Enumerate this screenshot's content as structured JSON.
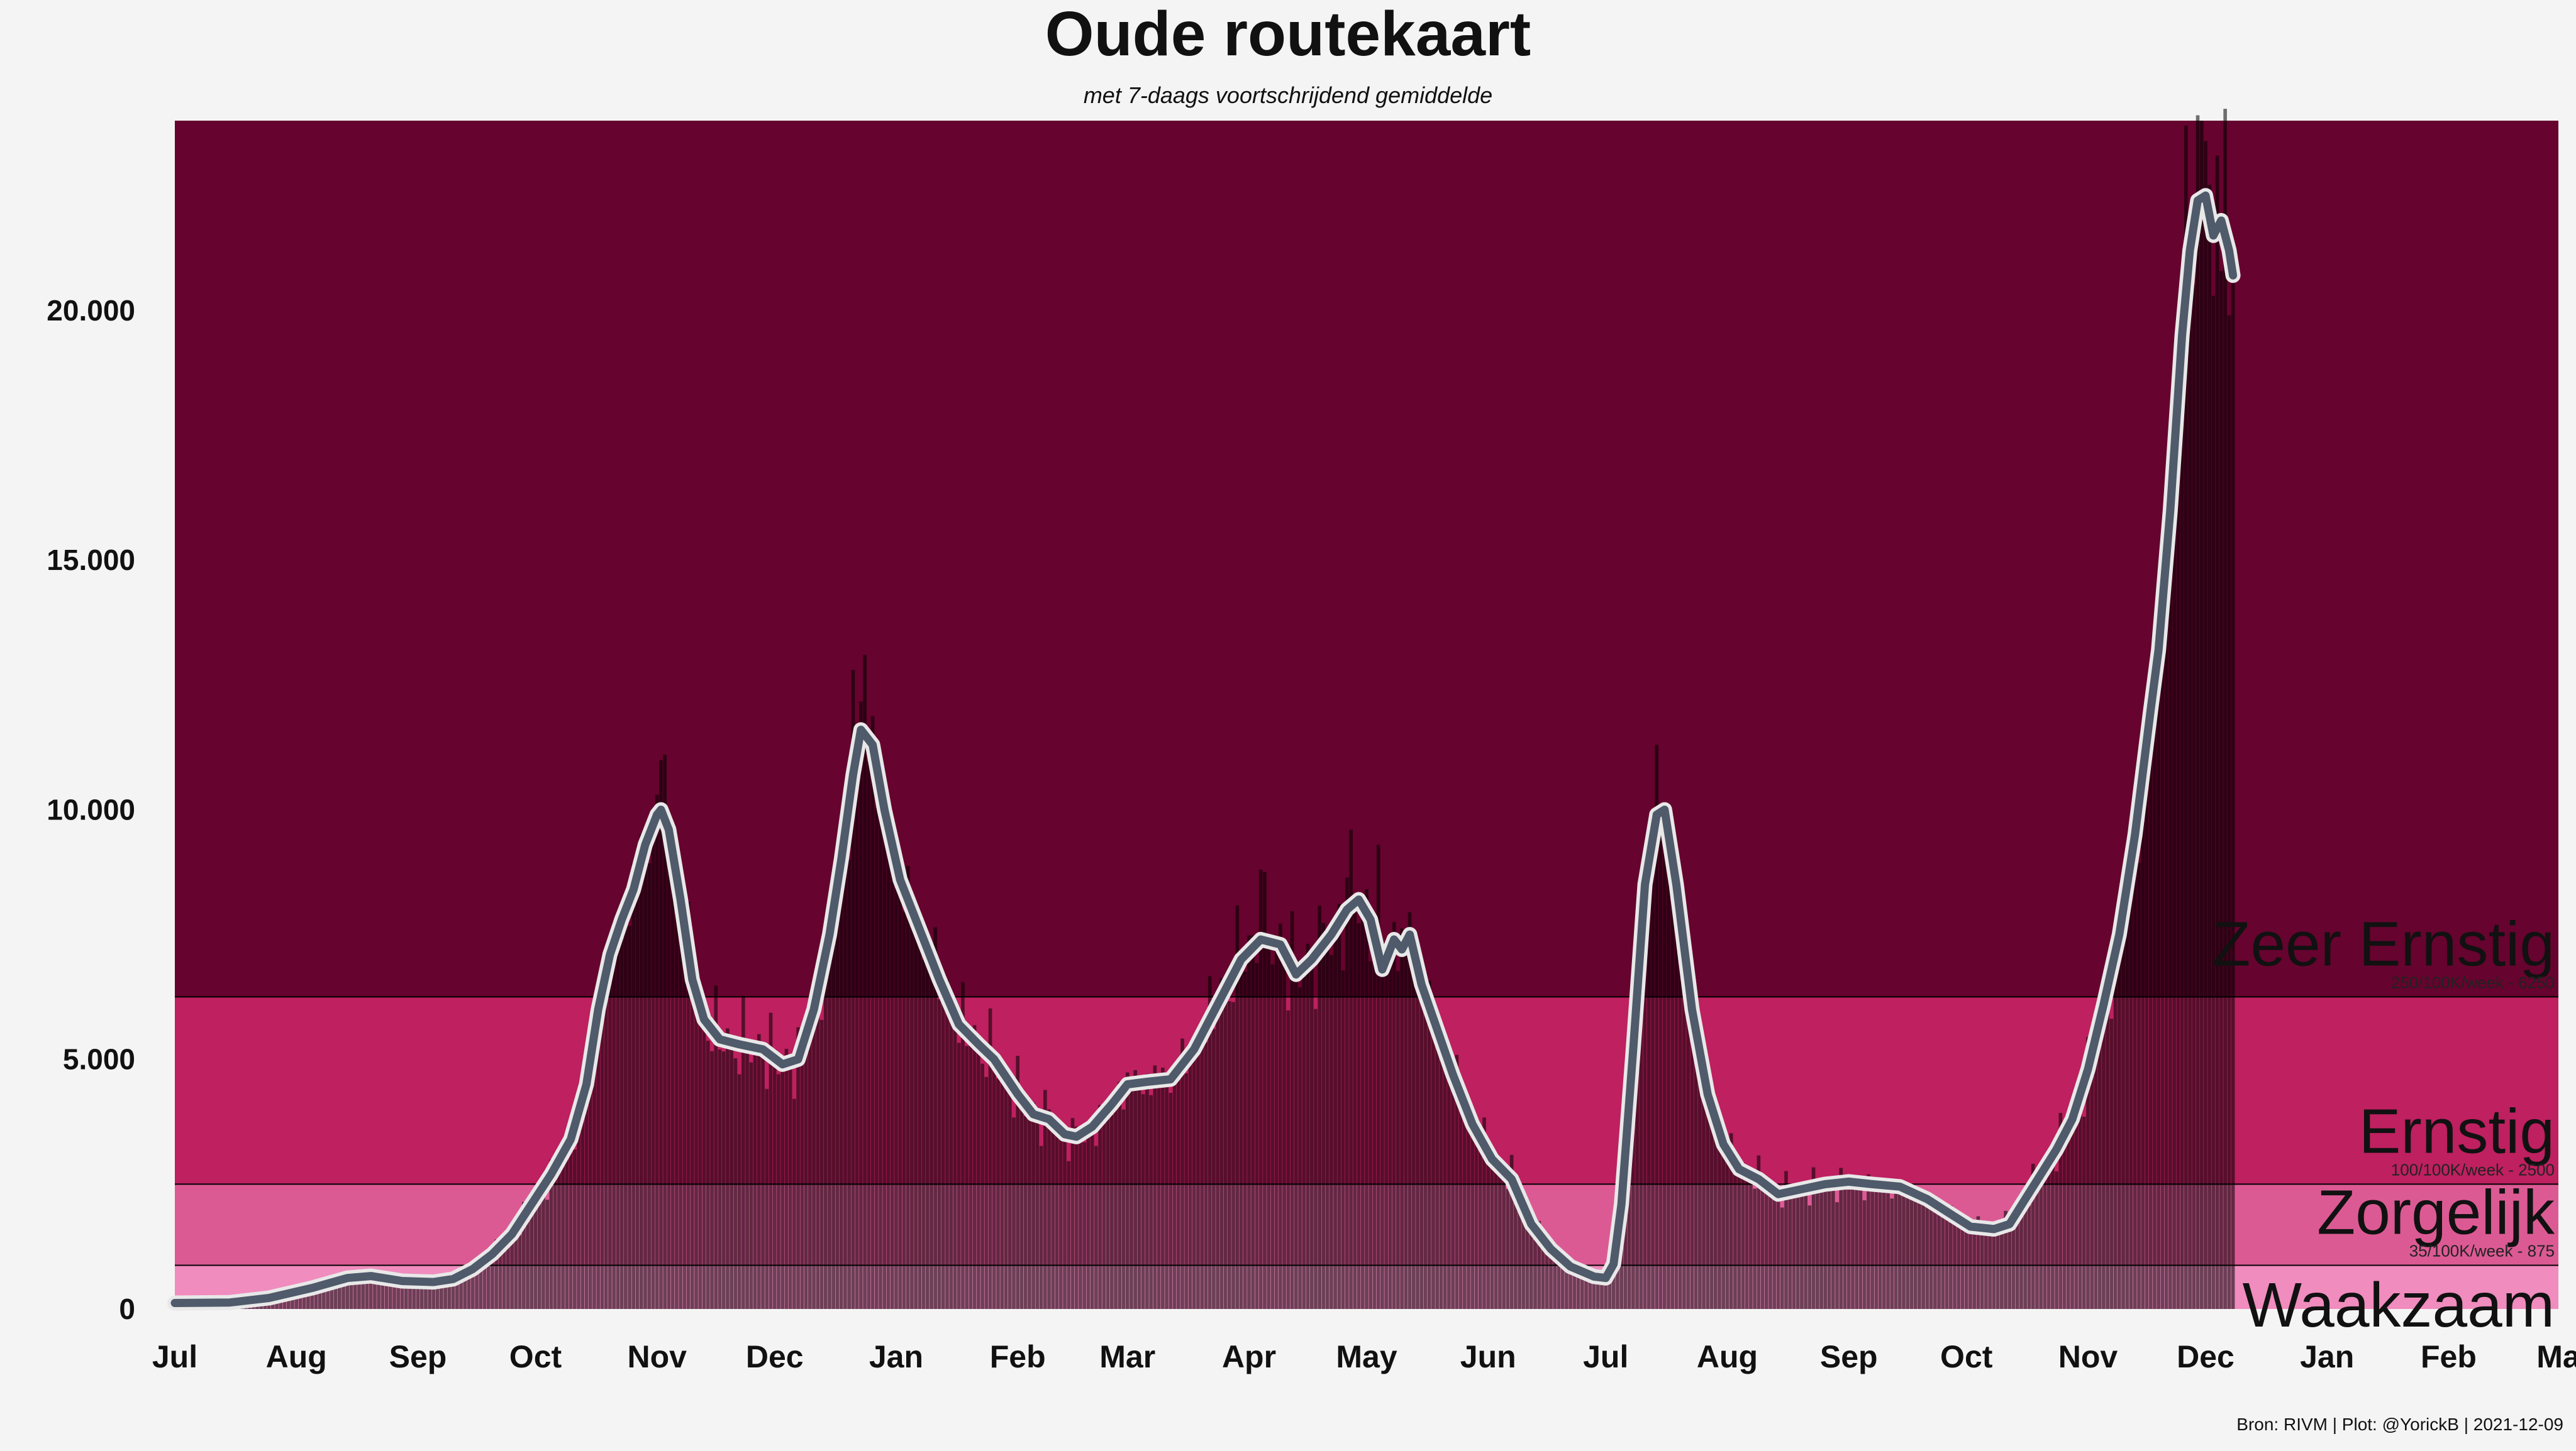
{
  "chart_data": {
    "type": "bar",
    "title": "Oude routekaart",
    "subtitle": "met 7-daags voortschrijdend gemiddelde",
    "source": "Bron: RIVM | Plot: @YorickB  |  2021-12-09",
    "ylim": [
      0,
      23800
    ],
    "yticks": [
      {
        "value": 0,
        "label": "0"
      },
      {
        "value": 5000,
        "label": "5.000"
      },
      {
        "value": 10000,
        "label": "10.000"
      },
      {
        "value": 15000,
        "label": "15.000"
      },
      {
        "value": 20000,
        "label": "20.000"
      }
    ],
    "xlim": [
      "2020-07-01",
      "2022-03-01"
    ],
    "xticks": [
      {
        "date": "2020-07-01",
        "label": "Jul"
      },
      {
        "date": "2020-08-01",
        "label": "Aug"
      },
      {
        "date": "2020-09-01",
        "label": "Sep"
      },
      {
        "date": "2020-10-01",
        "label": "Oct"
      },
      {
        "date": "2020-11-01",
        "label": "Nov"
      },
      {
        "date": "2020-12-01",
        "label": "Dec"
      },
      {
        "date": "2021-01-01",
        "label": "Jan"
      },
      {
        "date": "2021-02-01",
        "label": "Feb"
      },
      {
        "date": "2021-03-01",
        "label": "Mar"
      },
      {
        "date": "2021-04-01",
        "label": "Apr"
      },
      {
        "date": "2021-05-01",
        "label": "May"
      },
      {
        "date": "2021-06-01",
        "label": "Jun"
      },
      {
        "date": "2021-07-01",
        "label": "Jul"
      },
      {
        "date": "2021-08-01",
        "label": "Aug"
      },
      {
        "date": "2021-09-01",
        "label": "Sep"
      },
      {
        "date": "2021-10-01",
        "label": "Oct"
      },
      {
        "date": "2021-11-01",
        "label": "Nov"
      },
      {
        "date": "2021-12-01",
        "label": "Dec"
      },
      {
        "date": "2022-01-01",
        "label": "Jan"
      },
      {
        "date": "2022-02-01",
        "label": "Feb"
      },
      {
        "date": "2022-03-01",
        "label": "Ma"
      }
    ],
    "zones": [
      {
        "name": "Waakzaam",
        "from": 0,
        "to": 875,
        "color": "#f08cbe",
        "threshold_label": ""
      },
      {
        "name": "Zorgelijk",
        "from": 875,
        "to": 2500,
        "color": "#dc5a94",
        "threshold_label": "35/100K/week - 875"
      },
      {
        "name": "Ernstig",
        "from": 2500,
        "to": 6250,
        "color": "#be2060",
        "threshold_label": "100/100K/week - 2500"
      },
      {
        "name": "Zeer Ernstig",
        "from": 6250,
        "to": 23800,
        "color": "#66032e",
        "threshold_label": "250/100K/week - 6250"
      }
    ],
    "data_end_date": "2021-12-08",
    "moving_average_anchors": [
      [
        "2020-07-01",
        120
      ],
      [
        "2020-07-15",
        130
      ],
      [
        "2020-07-25",
        220
      ],
      [
        "2020-08-05",
        420
      ],
      [
        "2020-08-14",
        620
      ],
      [
        "2020-08-20",
        660
      ],
      [
        "2020-08-28",
        560
      ],
      [
        "2020-09-05",
        540
      ],
      [
        "2020-09-10",
        600
      ],
      [
        "2020-09-15",
        800
      ],
      [
        "2020-09-20",
        1100
      ],
      [
        "2020-09-25",
        1500
      ],
      [
        "2020-09-30",
        2100
      ],
      [
        "2020-10-05",
        2700
      ],
      [
        "2020-10-10",
        3400
      ],
      [
        "2020-10-14",
        4500
      ],
      [
        "2020-10-17",
        6000
      ],
      [
        "2020-10-20",
        7100
      ],
      [
        "2020-10-23",
        7800
      ],
      [
        "2020-10-26",
        8400
      ],
      [
        "2020-10-29",
        9300
      ],
      [
        "2020-11-01",
        9900
      ],
      [
        "2020-11-02",
        10000
      ],
      [
        "2020-11-04",
        9600
      ],
      [
        "2020-11-07",
        8200
      ],
      [
        "2020-11-10",
        6600
      ],
      [
        "2020-11-13",
        5800
      ],
      [
        "2020-11-17",
        5400
      ],
      [
        "2020-11-22",
        5300
      ],
      [
        "2020-11-28",
        5200
      ],
      [
        "2020-12-03",
        4900
      ],
      [
        "2020-12-07",
        5000
      ],
      [
        "2020-12-11",
        6000
      ],
      [
        "2020-12-15",
        7500
      ],
      [
        "2020-12-18",
        9000
      ],
      [
        "2020-12-21",
        10700
      ],
      [
        "2020-12-23",
        11600
      ],
      [
        "2020-12-26",
        11300
      ],
      [
        "2020-12-29",
        10000
      ],
      [
        "2021-01-02",
        8600
      ],
      [
        "2021-01-07",
        7600
      ],
      [
        "2021-01-12",
        6600
      ],
      [
        "2021-01-17",
        5700
      ],
      [
        "2021-01-22",
        5300
      ],
      [
        "2021-01-26",
        5000
      ],
      [
        "2021-02-01",
        4300
      ],
      [
        "2021-02-05",
        3900
      ],
      [
        "2021-02-09",
        3800
      ],
      [
        "2021-02-13",
        3500
      ],
      [
        "2021-02-16",
        3450
      ],
      [
        "2021-02-20",
        3650
      ],
      [
        "2021-02-25",
        4100
      ],
      [
        "2021-03-01",
        4500
      ],
      [
        "2021-03-06",
        4550
      ],
      [
        "2021-03-12",
        4600
      ],
      [
        "2021-03-18",
        5200
      ],
      [
        "2021-03-24",
        6100
      ],
      [
        "2021-03-30",
        7000
      ],
      [
        "2021-04-04",
        7400
      ],
      [
        "2021-04-09",
        7300
      ],
      [
        "2021-04-13",
        6700
      ],
      [
        "2021-04-17",
        7000
      ],
      [
        "2021-04-22",
        7500
      ],
      [
        "2021-04-26",
        8000
      ],
      [
        "2021-04-29",
        8200
      ],
      [
        "2021-05-02",
        7800
      ],
      [
        "2021-05-05",
        6800
      ],
      [
        "2021-05-08",
        7400
      ],
      [
        "2021-05-10",
        7200
      ],
      [
        "2021-05-12",
        7500
      ],
      [
        "2021-05-15",
        6500
      ],
      [
        "2021-05-19",
        5600
      ],
      [
        "2021-05-23",
        4700
      ],
      [
        "2021-05-28",
        3700
      ],
      [
        "2021-06-02",
        3000
      ],
      [
        "2021-06-07",
        2600
      ],
      [
        "2021-06-12",
        1700
      ],
      [
        "2021-06-17",
        1200
      ],
      [
        "2021-06-22",
        850
      ],
      [
        "2021-06-28",
        650
      ],
      [
        "2021-07-01",
        620
      ],
      [
        "2021-07-03",
        900
      ],
      [
        "2021-07-05",
        2100
      ],
      [
        "2021-07-08",
        5200
      ],
      [
        "2021-07-11",
        8500
      ],
      [
        "2021-07-14",
        9900
      ],
      [
        "2021-07-16",
        10000
      ],
      [
        "2021-07-19",
        8500
      ],
      [
        "2021-07-23",
        6000
      ],
      [
        "2021-07-27",
        4300
      ],
      [
        "2021-07-31",
        3300
      ],
      [
        "2021-08-04",
        2800
      ],
      [
        "2021-08-09",
        2600
      ],
      [
        "2021-08-14",
        2300
      ],
      [
        "2021-08-20",
        2400
      ],
      [
        "2021-08-26",
        2500
      ],
      [
        "2021-09-01",
        2550
      ],
      [
        "2021-09-07",
        2500
      ],
      [
        "2021-09-14",
        2450
      ],
      [
        "2021-09-21",
        2200
      ],
      [
        "2021-09-28",
        1850
      ],
      [
        "2021-10-02",
        1650
      ],
      [
        "2021-10-08",
        1600
      ],
      [
        "2021-10-12",
        1700
      ],
      [
        "2021-10-16",
        2200
      ],
      [
        "2021-10-20",
        2700
      ],
      [
        "2021-10-24",
        3200
      ],
      [
        "2021-10-28",
        3800
      ],
      [
        "2021-11-01",
        4800
      ],
      [
        "2021-11-05",
        6100
      ],
      [
        "2021-11-09",
        7500
      ],
      [
        "2021-11-13",
        9500
      ],
      [
        "2021-11-17",
        12000
      ],
      [
        "2021-11-19",
        13200
      ],
      [
        "2021-11-22",
        16000
      ],
      [
        "2021-11-25",
        19500
      ],
      [
        "2021-11-27",
        21200
      ],
      [
        "2021-11-29",
        22200
      ],
      [
        "2021-12-01",
        22300
      ],
      [
        "2021-12-03",
        21500
      ],
      [
        "2021-12-05",
        21800
      ],
      [
        "2021-12-07",
        21200
      ],
      [
        "2021-12-08",
        20700
      ]
    ],
    "daily_bar_peaks": [
      [
        "2020-11-01",
        10300
      ],
      [
        "2020-11-03",
        11100
      ],
      [
        "2020-12-21",
        12800
      ],
      [
        "2020-12-24",
        13100
      ],
      [
        "2021-04-04",
        8800
      ],
      [
        "2021-04-27",
        9600
      ],
      [
        "2021-05-04",
        9300
      ],
      [
        "2021-07-14",
        11300
      ],
      [
        "2021-11-26",
        23700
      ],
      [
        "2021-11-30",
        23800
      ],
      [
        "2021-12-04",
        23100
      ],
      [
        "2021-12-07",
        19900
      ]
    ]
  }
}
